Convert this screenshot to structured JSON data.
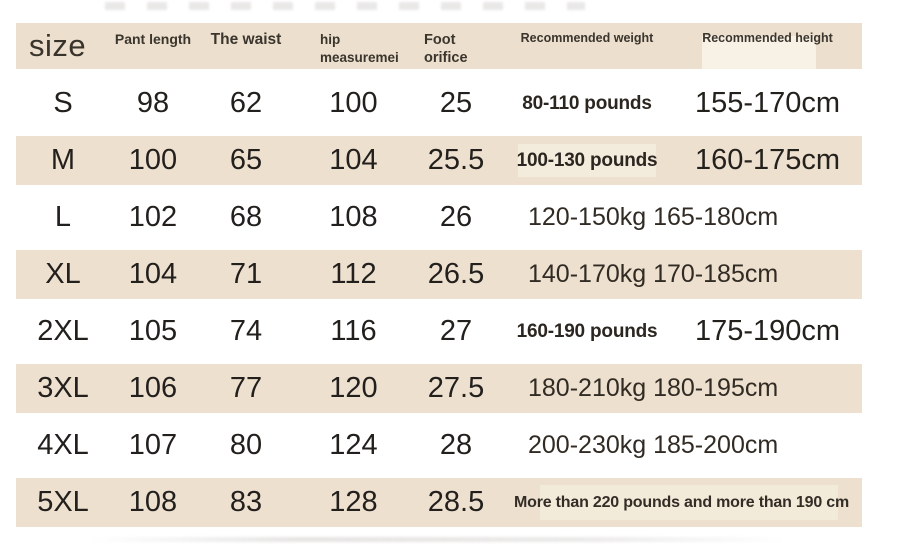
{
  "colors": {
    "row_alt_bg": "#ede0cf",
    "header_bg": "#ecdfcd",
    "patch_light": "#f5eedf",
    "text_dark": "#24211d"
  },
  "header": {
    "size": "size",
    "pant_length": "Pant length",
    "waist": "The waist",
    "hip_line1": "hip",
    "hip_line2": "measuremei",
    "foot_line1": "Foot",
    "foot_line2": "orifice",
    "weight": "Recommended weight",
    "height": "Recommended height"
  },
  "rows": [
    {
      "size": "S",
      "pant_length": "98",
      "waist": "62",
      "hip": "100",
      "foot": "25",
      "weight": "80-110 pounds",
      "height": "155-170cm"
    },
    {
      "size": "M",
      "pant_length": "100",
      "waist": "65",
      "hip": "104",
      "foot": "25.5",
      "weight": "100-130 pounds",
      "height": "160-175cm"
    },
    {
      "size": "L",
      "pant_length": "102",
      "waist": "68",
      "hip": "108",
      "foot": "26",
      "weight_height": "120-150kg 165-180cm"
    },
    {
      "size": "XL",
      "pant_length": "104",
      "waist": "71",
      "hip": "112",
      "foot": "26.5",
      "weight_height": "140-170kg 170-185cm"
    },
    {
      "size": "2XL",
      "pant_length": "105",
      "waist": "74",
      "hip": "116",
      "foot": "27",
      "weight": "160-190 pounds",
      "height": "175-190cm"
    },
    {
      "size": "3XL",
      "pant_length": "106",
      "waist": "77",
      "hip": "120",
      "foot": "27.5",
      "weight_height": "180-210kg 180-195cm"
    },
    {
      "size": "4XL",
      "pant_length": "107",
      "waist": "80",
      "hip": "124",
      "foot": "28",
      "weight_height": "200-230kg 185-200cm"
    },
    {
      "size": "5XL",
      "pant_length": "108",
      "waist": "83",
      "hip": "128",
      "foot": "28.5",
      "weight_height": "More than 220 pounds and more than 190 cm"
    }
  ],
  "chart_data": {
    "type": "table",
    "title": "",
    "columns": [
      "size",
      "Pant length",
      "The waist",
      "hip measuremei",
      "Foot orifice",
      "Recommended weight",
      "Recommended height"
    ],
    "rows": [
      [
        "S",
        "98",
        "62",
        "100",
        "25",
        "80-110 pounds",
        "155-170cm"
      ],
      [
        "M",
        "100",
        "65",
        "104",
        "25.5",
        "100-130 pounds",
        "160-175cm"
      ],
      [
        "L",
        "102",
        "68",
        "108",
        "26",
        "120-150kg 165-180cm",
        ""
      ],
      [
        "XL",
        "104",
        "71",
        "112",
        "26.5",
        "140-170kg 170-185cm",
        ""
      ],
      [
        "2XL",
        "105",
        "74",
        "116",
        "27",
        "160-190 pounds",
        "175-190cm"
      ],
      [
        "3XL",
        "106",
        "77",
        "120",
        "27.5",
        "180-210kg 180-195cm",
        ""
      ],
      [
        "4XL",
        "107",
        "80",
        "124",
        "28",
        "200-230kg 185-200cm",
        ""
      ],
      [
        "5XL",
        "108",
        "83",
        "128",
        "28.5",
        "More than 220 pounds and more than 190 cm",
        ""
      ]
    ],
    "layout": {
      "alternating_row_colors": [
        "#ffffff",
        "#ede0cf"
      ],
      "gridlines": false,
      "merged_weight_height_rows": [
        "L",
        "XL",
        "3XL",
        "4XL",
        "5XL"
      ]
    }
  }
}
